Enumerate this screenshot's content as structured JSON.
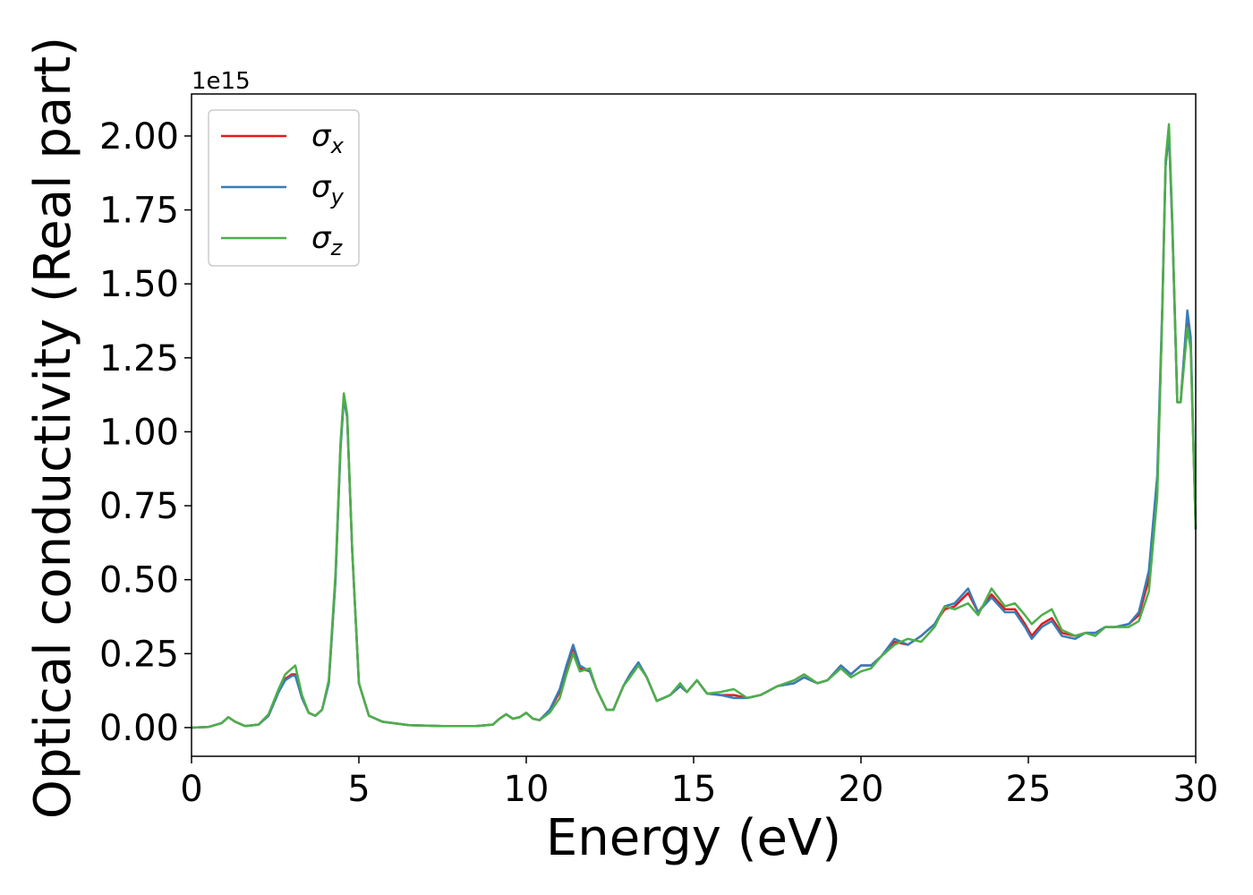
{
  "chart_data": {
    "type": "line",
    "xlabel": "Energy (eV)",
    "ylabel": "Optical conductivity (Real part)",
    "y_offset_label": "1e15",
    "xlim": [
      0,
      30
    ],
    "ylim": [
      -0.097,
      2.142
    ],
    "xticks": [
      0,
      5,
      10,
      15,
      20,
      25,
      30
    ],
    "yticks": [
      {
        "value": 0,
        "label": "0.00"
      },
      {
        "value": 0.25,
        "label": "0.25"
      },
      {
        "value": 0.5,
        "label": "0.50"
      },
      {
        "value": 0.75,
        "label": "0.75"
      },
      {
        "value": 1,
        "label": "1.00"
      },
      {
        "value": 1.25,
        "label": "1.25"
      },
      {
        "value": 1.5,
        "label": "1.50"
      },
      {
        "value": 1.75,
        "label": "1.75"
      },
      {
        "value": 2,
        "label": "2.00"
      }
    ],
    "legend": "upper left",
    "x": [
      0,
      0.5,
      0.9,
      1.1,
      1.3,
      1.6,
      2.0,
      2.3,
      2.6,
      2.8,
      3.0,
      3.1,
      3.3,
      3.5,
      3.7,
      3.9,
      4.1,
      4.3,
      4.45,
      4.55,
      4.65,
      4.8,
      5.0,
      5.3,
      5.7,
      6.5,
      7.5,
      8.5,
      9.0,
      9.2,
      9.4,
      9.6,
      9.8,
      10.0,
      10.2,
      10.4,
      10.7,
      11.0,
      11.2,
      11.4,
      11.6,
      11.9,
      12.1,
      12.4,
      12.6,
      12.9,
      13.1,
      13.35,
      13.6,
      13.9,
      14.3,
      14.6,
      14.8,
      15.1,
      15.4,
      15.8,
      16.2,
      16.6,
      17.0,
      17.5,
      18.0,
      18.3,
      18.7,
      19.0,
      19.4,
      19.7,
      20.0,
      20.3,
      20.6,
      21.0,
      21.4,
      21.8,
      22.2,
      22.5,
      22.8,
      23.2,
      23.5,
      23.9,
      24.3,
      24.6,
      24.9,
      25.1,
      25.4,
      25.7,
      26.0,
      26.4,
      26.7,
      27.0,
      27.3,
      27.6,
      28.0,
      28.3,
      28.6,
      28.85,
      29.0,
      29.1,
      29.2,
      29.3,
      29.45,
      29.55,
      29.75,
      29.85,
      30.0
    ],
    "series": [
      {
        "name": "σx",
        "color": "#e41a1c",
        "values": [
          0,
          0.002,
          0.015,
          0.035,
          0.02,
          0.005,
          0.01,
          0.04,
          0.12,
          0.165,
          0.18,
          0.18,
          0.1,
          0.05,
          0.04,
          0.06,
          0.15,
          0.5,
          0.95,
          1.12,
          1.05,
          0.6,
          0.15,
          0.04,
          0.02,
          0.008,
          0.005,
          0.005,
          0.01,
          0.03,
          0.045,
          0.03,
          0.035,
          0.05,
          0.03,
          0.025,
          0.06,
          0.12,
          0.2,
          0.27,
          0.2,
          0.19,
          0.13,
          0.06,
          0.06,
          0.14,
          0.18,
          0.22,
          0.17,
          0.09,
          0.11,
          0.14,
          0.12,
          0.16,
          0.115,
          0.11,
          0.11,
          0.1,
          0.11,
          0.14,
          0.15,
          0.17,
          0.15,
          0.16,
          0.21,
          0.18,
          0.21,
          0.21,
          0.24,
          0.29,
          0.28,
          0.31,
          0.35,
          0.4,
          0.41,
          0.455,
          0.39,
          0.45,
          0.4,
          0.4,
          0.35,
          0.31,
          0.35,
          0.37,
          0.32,
          0.31,
          0.32,
          0.32,
          0.34,
          0.34,
          0.35,
          0.38,
          0.5,
          0.8,
          1.4,
          1.9,
          2.02,
          1.7,
          1.1,
          1.1,
          1.4,
          1.3,
          0.67
        ]
      },
      {
        "name": "σy",
        "color": "#377eb8",
        "values": [
          0,
          0.002,
          0.015,
          0.035,
          0.02,
          0.005,
          0.01,
          0.04,
          0.12,
          0.16,
          0.175,
          0.175,
          0.1,
          0.05,
          0.04,
          0.06,
          0.15,
          0.5,
          0.94,
          1.11,
          1.05,
          0.6,
          0.15,
          0.04,
          0.02,
          0.008,
          0.005,
          0.005,
          0.01,
          0.03,
          0.045,
          0.03,
          0.035,
          0.05,
          0.03,
          0.025,
          0.06,
          0.13,
          0.21,
          0.28,
          0.21,
          0.19,
          0.13,
          0.06,
          0.06,
          0.14,
          0.18,
          0.22,
          0.17,
          0.09,
          0.11,
          0.14,
          0.12,
          0.16,
          0.115,
          0.11,
          0.1,
          0.1,
          0.11,
          0.14,
          0.15,
          0.17,
          0.15,
          0.16,
          0.21,
          0.18,
          0.21,
          0.21,
          0.24,
          0.3,
          0.28,
          0.31,
          0.35,
          0.41,
          0.42,
          0.47,
          0.39,
          0.44,
          0.39,
          0.39,
          0.34,
          0.3,
          0.34,
          0.36,
          0.31,
          0.3,
          0.32,
          0.32,
          0.34,
          0.34,
          0.35,
          0.39,
          0.53,
          0.85,
          1.42,
          1.9,
          2.01,
          1.7,
          1.1,
          1.1,
          1.41,
          1.32,
          0.67
        ]
      },
      {
        "name": "σz",
        "color": "#4daf4a",
        "values": [
          0,
          0.002,
          0.015,
          0.035,
          0.02,
          0.005,
          0.01,
          0.045,
          0.13,
          0.18,
          0.2,
          0.21,
          0.11,
          0.05,
          0.04,
          0.06,
          0.16,
          0.52,
          0.96,
          1.13,
          1.06,
          0.6,
          0.15,
          0.04,
          0.02,
          0.008,
          0.005,
          0.005,
          0.01,
          0.03,
          0.045,
          0.03,
          0.035,
          0.05,
          0.03,
          0.025,
          0.05,
          0.1,
          0.18,
          0.25,
          0.19,
          0.2,
          0.13,
          0.06,
          0.06,
          0.14,
          0.17,
          0.21,
          0.17,
          0.09,
          0.11,
          0.15,
          0.12,
          0.16,
          0.115,
          0.12,
          0.13,
          0.1,
          0.11,
          0.14,
          0.16,
          0.18,
          0.15,
          0.16,
          0.2,
          0.17,
          0.19,
          0.2,
          0.24,
          0.28,
          0.3,
          0.29,
          0.34,
          0.41,
          0.4,
          0.42,
          0.38,
          0.47,
          0.41,
          0.42,
          0.38,
          0.35,
          0.38,
          0.4,
          0.33,
          0.31,
          0.32,
          0.31,
          0.34,
          0.34,
          0.34,
          0.36,
          0.46,
          0.78,
          1.4,
          1.92,
          2.04,
          1.72,
          1.1,
          1.1,
          1.35,
          1.28,
          0.67
        ]
      }
    ]
  }
}
